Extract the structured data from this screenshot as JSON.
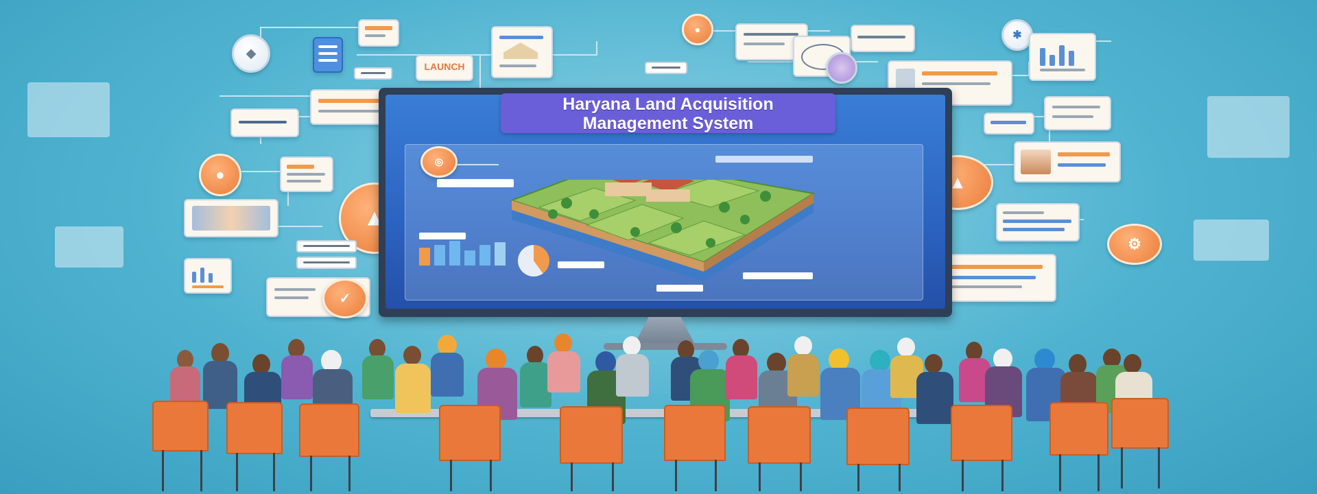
{
  "banner": {
    "title_line1": "Haryana Land Acquisition",
    "title_line2": "Management System"
  },
  "tag_label": "LAUNCH",
  "colors": {
    "background": "#4fb3d0",
    "title_box": "#6a5fd8",
    "accent_orange": "#ea7d3a",
    "screen_blue": "#2b63c0",
    "card": "#fbf6ee"
  },
  "icons": [
    "user-icon",
    "check-icon",
    "gear-icon",
    "location-icon",
    "chart-icon",
    "fan-icon"
  ]
}
